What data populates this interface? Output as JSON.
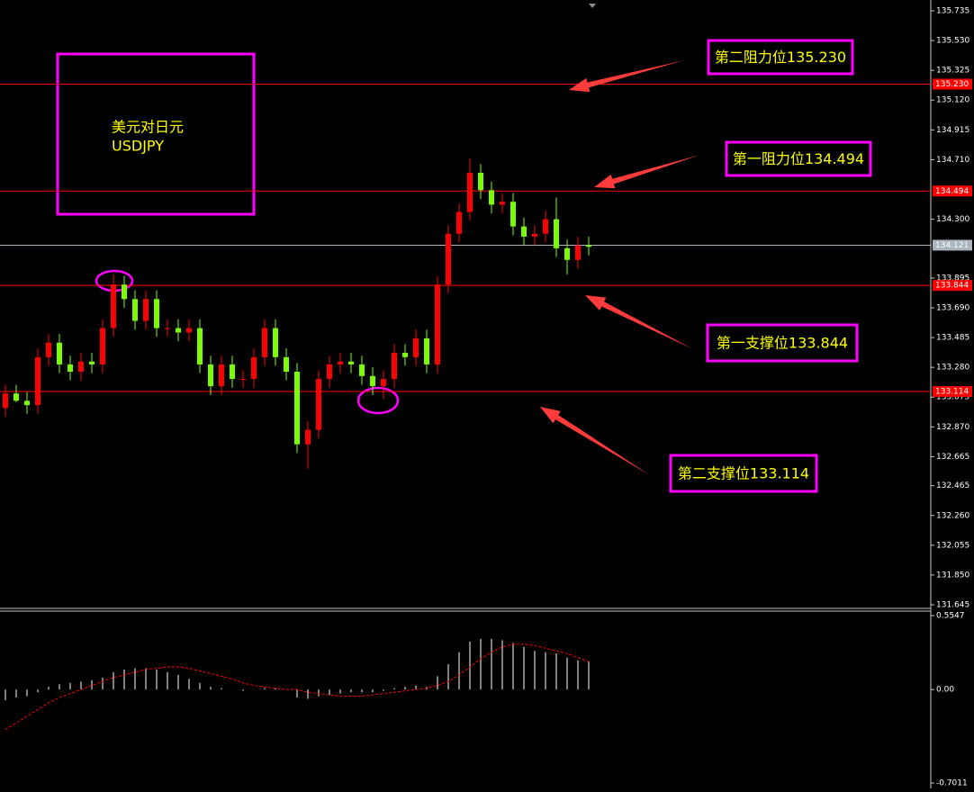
{
  "chart_data": [
    {
      "type": "candlestick",
      "title": [
        "美元对日元",
        "USDJPY"
      ],
      "up_color": "#ff0000",
      "down_color": "#7cfc00",
      "open": [
        133.0,
        133.1,
        133.05,
        133.02,
        133.35,
        133.45,
        133.3,
        133.25,
        133.32,
        133.3,
        133.55,
        133.85,
        133.75,
        133.6,
        133.75,
        133.55,
        133.55,
        133.52,
        133.55,
        133.3,
        133.15,
        133.3,
        133.2,
        133.2,
        133.35,
        133.55,
        133.35,
        133.25,
        132.75,
        132.85,
        133.2,
        133.3,
        133.32,
        133.3,
        133.22,
        133.15,
        133.2,
        133.38,
        133.35,
        133.48,
        133.3,
        133.85,
        134.2,
        134.35,
        134.62,
        134.5,
        134.4,
        134.42,
        134.25,
        134.18,
        134.2,
        134.3,
        134.1,
        134.02,
        134.12
      ],
      "high": [
        133.16,
        133.16,
        133.11,
        133.41,
        133.51,
        133.51,
        133.36,
        133.38,
        133.38,
        133.61,
        133.92,
        133.91,
        133.81,
        133.81,
        133.81,
        133.61,
        133.61,
        133.61,
        133.61,
        133.36,
        133.36,
        133.36,
        133.26,
        133.41,
        133.61,
        133.61,
        133.41,
        133.31,
        132.91,
        133.26,
        133.36,
        133.38,
        133.38,
        133.36,
        133.28,
        133.26,
        133.44,
        133.44,
        133.54,
        133.54,
        133.91,
        134.26,
        134.41,
        134.72,
        134.68,
        134.56,
        134.48,
        134.48,
        134.31,
        134.26,
        134.36,
        134.45,
        134.16,
        134.18,
        134.18
      ],
      "low": [
        132.94,
        133.04,
        132.96,
        132.96,
        133.29,
        133.24,
        133.19,
        133.19,
        133.24,
        133.24,
        133.49,
        133.69,
        133.54,
        133.54,
        133.49,
        133.49,
        133.46,
        133.46,
        133.24,
        133.09,
        133.09,
        133.14,
        133.14,
        133.14,
        133.29,
        133.29,
        133.19,
        132.69,
        132.58,
        132.79,
        133.14,
        133.24,
        133.24,
        133.16,
        133.09,
        133.06,
        133.14,
        133.29,
        133.29,
        133.24,
        133.24,
        133.79,
        134.14,
        134.29,
        134.44,
        134.34,
        134.34,
        134.19,
        134.12,
        134.12,
        134.14,
        134.04,
        133.92,
        133.96,
        134.05
      ],
      "close": [
        133.1,
        133.05,
        133.02,
        133.35,
        133.45,
        133.3,
        133.25,
        133.32,
        133.3,
        133.55,
        133.85,
        133.75,
        133.6,
        133.75,
        133.55,
        133.55,
        133.52,
        133.55,
        133.3,
        133.15,
        133.3,
        133.2,
        133.2,
        133.35,
        133.55,
        133.35,
        133.25,
        132.75,
        132.85,
        133.2,
        133.3,
        133.32,
        133.3,
        133.22,
        133.15,
        133.2,
        133.38,
        133.35,
        133.48,
        133.3,
        133.85,
        134.2,
        134.35,
        134.62,
        134.5,
        134.4,
        134.42,
        134.25,
        134.18,
        134.2,
        134.3,
        134.1,
        134.02,
        134.12,
        134.11
      ],
      "ylim": [
        131.645,
        135.735
      ],
      "yticks": [
        135.735,
        {
          "value": 135.53,
          "label": "135.530"
        },
        135.325,
        {
          "value": 135.12,
          "label": "135.120"
        },
        134.915,
        {
          "value": 134.71,
          "label": "134.710"
        },
        {
          "value": 134.3,
          "label": "134.300"
        },
        133.895,
        {
          "value": 133.69,
          "label": "133.690"
        },
        133.485,
        {
          "value": 133.28,
          "label": "133.280"
        },
        133.075,
        {
          "value": 132.87,
          "label": "132.870"
        },
        132.665,
        132.465,
        {
          "value": 132.26,
          "label": "132.260"
        },
        132.055,
        {
          "value": 131.85,
          "label": "131.850"
        },
        131.645
      ],
      "levels": [
        {
          "value": 135.23,
          "label": "135.230",
          "color": "#ff0000"
        },
        {
          "value": 134.494,
          "label": "134.494",
          "color": "#ff0000"
        },
        {
          "value": 134.121,
          "label": "134.121",
          "color": "#aab4be"
        },
        {
          "value": 133.844,
          "label": "133.844",
          "color": "#ff0000"
        },
        {
          "value": 133.114,
          "label": "133.114",
          "color": "#ff0000"
        }
      ],
      "annotations": [
        "第二阻力位135.230",
        "第一阻力位134.494",
        "第一支撑位133.844",
        "第二支撑位133.114"
      ]
    },
    {
      "type": "macd",
      "histogram": [
        -0.08,
        -0.06,
        -0.05,
        -0.02,
        0.02,
        0.04,
        0.05,
        0.06,
        0.07,
        0.09,
        0.13,
        0.15,
        0.16,
        0.16,
        0.15,
        0.13,
        0.11,
        0.08,
        0.05,
        0.02,
        0.01,
        0.0,
        -0.01,
        0.0,
        0.01,
        0.01,
        0.0,
        -0.06,
        -0.07,
        -0.05,
        -0.04,
        -0.03,
        -0.02,
        -0.02,
        -0.02,
        -0.01,
        0.01,
        0.02,
        0.03,
        0.02,
        0.1,
        0.19,
        0.28,
        0.36,
        0.38,
        0.38,
        0.37,
        0.35,
        0.32,
        0.29,
        0.28,
        0.27,
        0.24,
        0.22,
        0.21
      ],
      "signal": [
        -0.3,
        -0.25,
        -0.2,
        -0.15,
        -0.1,
        -0.06,
        -0.03,
        0.0,
        0.03,
        0.06,
        0.09,
        0.11,
        0.13,
        0.15,
        0.16,
        0.17,
        0.17,
        0.16,
        0.14,
        0.12,
        0.1,
        0.08,
        0.05,
        0.03,
        0.02,
        0.01,
        0.0,
        0.0,
        -0.02,
        -0.03,
        -0.04,
        -0.05,
        -0.05,
        -0.05,
        -0.04,
        -0.03,
        -0.02,
        -0.01,
        0.0,
        0.01,
        0.03,
        0.06,
        0.11,
        0.17,
        0.23,
        0.28,
        0.32,
        0.34,
        0.34,
        0.33,
        0.31,
        0.29,
        0.27,
        0.24,
        0.21
      ],
      "hist_color": "#ffffff",
      "signal_color": "#ff0000",
      "ylim": [
        -0.7011,
        0.5547
      ],
      "yticks": [
        0.5547,
        {
          "value": 0,
          "label": "0.00"
        },
        -0.7011
      ]
    }
  ]
}
